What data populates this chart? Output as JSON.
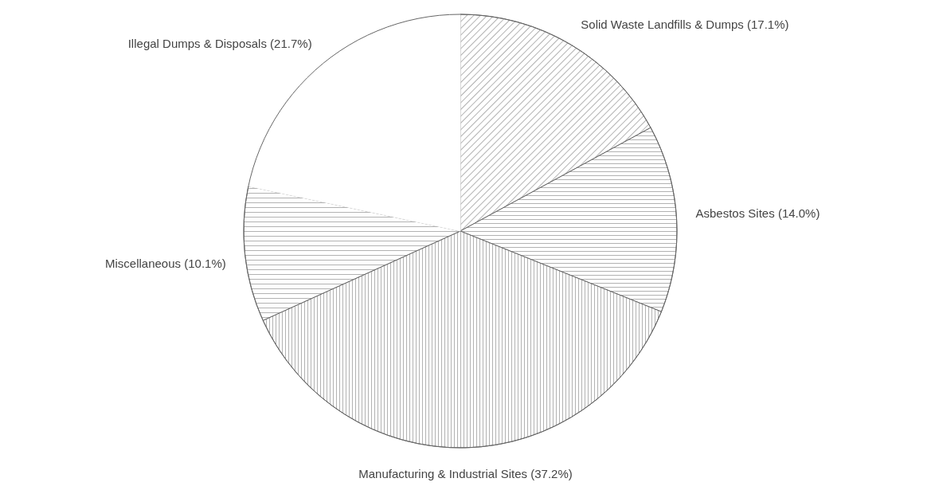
{
  "chart_data": {
    "type": "pie",
    "categories": [
      "Solid Waste Landfills & Dumps",
      "Asbestos Sites",
      "Manufacturing & Industrial Sites",
      "Miscellaneous",
      "Illegal Dumps & Disposals"
    ],
    "values": [
      17.1,
      14.0,
      37.2,
      10.1,
      21.7
    ],
    "value_labels": [
      "(17.1%)",
      "(14.0%)",
      "(37.2%)",
      "(10.1%)",
      "(21.7%)"
    ],
    "colors": [
      "#666666",
      "#666666",
      "#666666",
      "#666666",
      "#ffffff"
    ]
  }
}
